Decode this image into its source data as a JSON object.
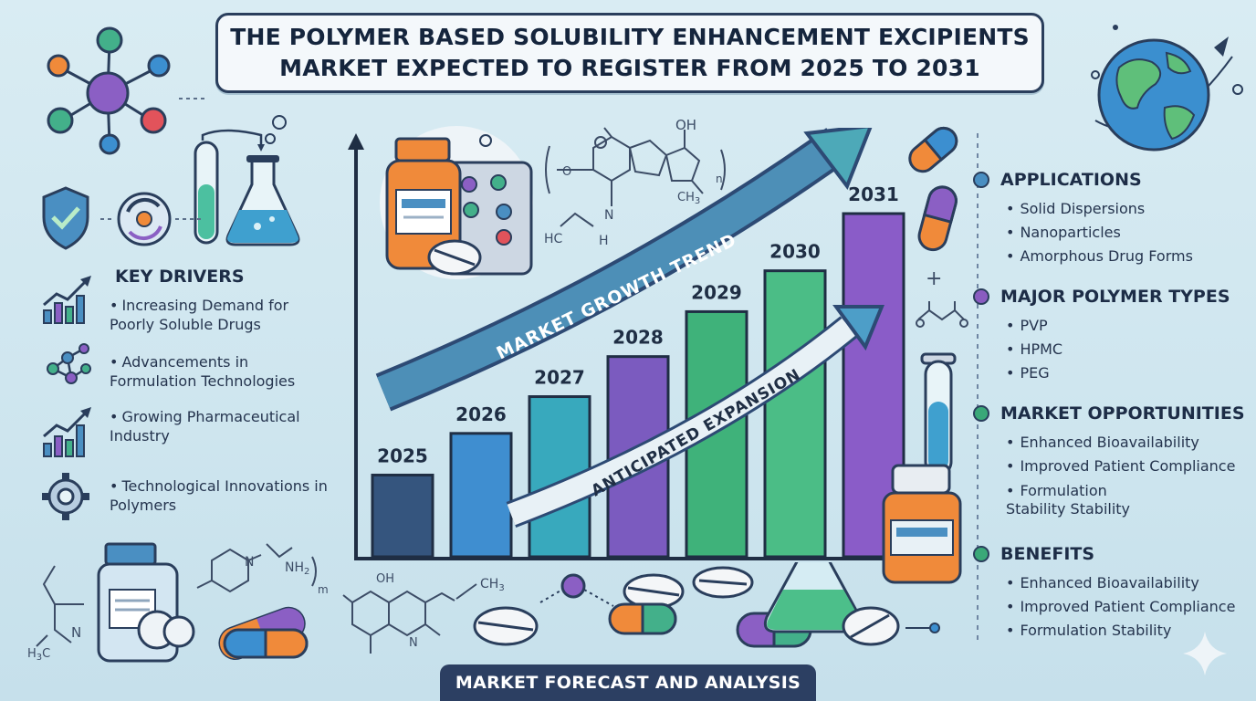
{
  "title": {
    "line1": "THE POLYMER BASED SOLUBILITY ENHANCEMENT EXCIPIENTS",
    "line2": "MARKET EXPECTED TO REGISTER FROM 2025 TO 2031"
  },
  "key_drivers": {
    "heading": "KEY DRIVERS",
    "items": [
      {
        "text": "Increasing Demand for Poorly Soluble Drugs",
        "icon": "bar-growth-icon"
      },
      {
        "text": "Advancements in Formulation Technologies",
        "icon": "molecule-network-icon"
      },
      {
        "text": "Growing Pharmaceutical Industry",
        "icon": "bar-growth-icon"
      },
      {
        "text": "Technological Innovations in Polymers",
        "icon": "gear-icon"
      }
    ]
  },
  "right_panel": {
    "applications": {
      "heading": "APPLICATIONS",
      "color": "#4a8fc2",
      "items": [
        "Solid Dispersions",
        "Nanoparticles",
        "Amorphous Drug Forms"
      ]
    },
    "polymer_types": {
      "heading": "MAJOR POLYMER TYPES",
      "color": "#8a5cc0",
      "items": [
        "PVP",
        "HPMC",
        "PEG"
      ]
    },
    "opportunities": {
      "heading": "MARKET OPPORTUNITIES",
      "color": "#3aa878",
      "items": [
        "Enhanced Bioavailability",
        "Improved Patient Compliance",
        "Formulation Stability Stability"
      ]
    },
    "benefits": {
      "heading": "BENEFITS",
      "color": "#3aa878",
      "items": [
        "Enhanced Bioavailability",
        "Improved Patient Compliance",
        "Formulation Stability"
      ]
    }
  },
  "chart_data": {
    "type": "bar",
    "categories": [
      "2025",
      "2026",
      "2027",
      "2028",
      "2029",
      "2030",
      "2031"
    ],
    "values": [
      1,
      1.51,
      1.96,
      2.45,
      3.0,
      3.5,
      4.2
    ],
    "colors": [
      "#35557e",
      "#3f8ed0",
      "#38a9bd",
      "#7b5bbf",
      "#3fb27a",
      "#4bbd86",
      "#8a5cc8"
    ],
    "annotations": [
      "MARKET GROWTH TREND",
      "ANTICIPATED EXPANSION"
    ],
    "grid": false
  },
  "footer": {
    "label": "MARKET FORECAST AND ANALYSIS"
  },
  "chem_labels": {
    "oh_top": "OH",
    "n_mid": "N",
    "hc": "HC",
    "ch3_mid": "CH",
    "ch3_sub": "3",
    "h_mid": "H",
    "n_sub": "n",
    "nh2": "NH",
    "nh2_sub": "2",
    "m_sub": "m",
    "n_bottom": "N",
    "h3c": "H",
    "h3c_sub": "3",
    "c_letter": "C",
    "oh_bottom": "OH",
    "ch3_bottom": "CH",
    "ch3_bottom_sub": "3",
    "n_quin": "N",
    "n_pyr": "N",
    "plus": "+"
  }
}
